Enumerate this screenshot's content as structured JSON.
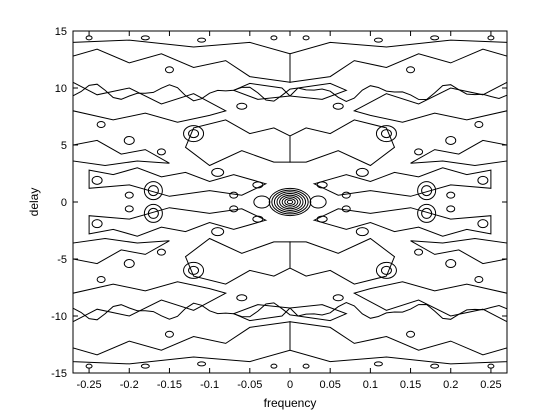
{
  "chart_data": {
    "type": "contour",
    "title": "",
    "xlabel": "frequency",
    "ylabel": "delay",
    "xlim": [
      -0.27,
      0.27
    ],
    "ylim": [
      -15,
      15
    ],
    "xticks": [
      -0.25,
      -0.2,
      -0.15,
      -0.1,
      -0.05,
      0,
      0.05,
      0.1,
      0.15,
      0.2,
      0.25
    ],
    "xtick_labels": [
      "-0.25",
      "-0.2",
      "-0.15",
      "-0.1",
      "-0.05",
      "0",
      "0.05",
      "0.1",
      "0.15",
      "0.2",
      "0.25"
    ],
    "yticks": [
      -15,
      -10,
      -5,
      0,
      5,
      10,
      15
    ],
    "ytick_labels": [
      "-15",
      "-10",
      "-5",
      "0",
      "5",
      "10",
      "15"
    ],
    "grid": false,
    "legend": "none",
    "line_color": "#000000",
    "central_peak": {
      "x": 0,
      "y": 0
    },
    "secondary_peaks": [
      {
        "x": -0.17,
        "y": 1
      },
      {
        "x": 0.17,
        "y": 1
      },
      {
        "x": -0.17,
        "y": -1
      },
      {
        "x": 0.17,
        "y": -1
      }
    ]
  }
}
